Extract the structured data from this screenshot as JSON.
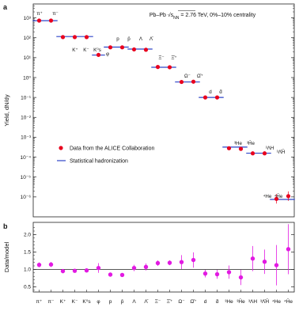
{
  "panel_a_label": "a",
  "panel_b_label": "b",
  "info": {
    "system": "Pb–Pb",
    "energy_prefix": "√s",
    "energy_sub": "NN",
    "energy_suffix": " = 2.76 TeV, 0%–10% centrality"
  },
  "legend": {
    "data_label": "Data from the ALICE Collaboration",
    "model_label": "Statistical hadronization"
  },
  "colors": {
    "data": "#e8001e",
    "model": "#2d43c8",
    "ratio": "#e21ae2",
    "error": "#e21ae2"
  },
  "chart_data": [
    {
      "type": "scatter",
      "panel": "a",
      "ylabel": "Yield, dN/dy",
      "yscale": "log",
      "ylim": [
        1e-07,
        5000
      ],
      "y_ticks": [
        "10³",
        "10²",
        "10¹",
        "10⁰",
        "10⁻¹",
        "10⁻²",
        "10⁻³",
        "10⁻⁴",
        "10⁻⁵",
        "10⁻⁶"
      ],
      "y_tick_values": [
        1000,
        100,
        10,
        1,
        0.1,
        0.01,
        0.001,
        0.0001,
        1e-05,
        1e-06
      ],
      "groups": [
        {
          "label": "π⁺  π⁻",
          "x": [
            0.8,
            1.8
          ],
          "data": [
            730,
            730
          ],
          "model": 720
        },
        {
          "label": "K⁺  K⁻  K⁰s",
          "x": [
            2.8,
            3.8,
            4.8
          ],
          "data": [
            108,
            108,
            108
          ],
          "model": 115
        },
        {
          "label": "φ",
          "x": [
            5.8
          ],
          "data": [
            13.8
          ],
          "model": 13.5
        },
        {
          "label": "p  p̄",
          "x": [
            6.8,
            7.8
          ],
          "data": [
            33,
            33
          ],
          "model": 34
        },
        {
          "label": "Λ  Λ̄",
          "x": [
            8.8,
            9.8
          ],
          "data": [
            26,
            25
          ],
          "model": 27
        },
        {
          "label": "Ξ⁻  Ξ̄⁺",
          "x": [
            10.8,
            11.8
          ],
          "data": [
            3.4,
            3.3
          ],
          "model": 3.3
        },
        {
          "label": "Ω⁻  Ω̄⁺",
          "x": [
            12.8,
            13.8
          ],
          "data": [
            0.6,
            0.62
          ],
          "model": 0.6
        },
        {
          "label": "d  d̄",
          "x": [
            14.8,
            15.8
          ],
          "data": [
            0.1,
            0.1
          ],
          "model": 0.1
        },
        {
          "label": "³He  ³H̄e",
          "x": [
            16.8,
            17.8
          ],
          "data": [
            0.00028,
            0.00026
          ],
          "model": 0.00032
        },
        {
          "label": "³ΛH  ³Λ̄H̄",
          "x": [
            18.8,
            19.8
          ],
          "data": [
            0.000155,
            0.000155
          ],
          "model": 0.000158
        },
        {
          "label": "⁴He  ⁴H̄e",
          "x": [
            20.8,
            21.8
          ],
          "data": [
            8e-07,
            1.1e-06
          ],
          "model": 7.5e-07
        }
      ],
      "annotations": [
        "π⁺",
        "π⁻",
        "K⁺",
        "K⁻",
        "K⁰s",
        "φ",
        "p",
        "p̄",
        "Λ",
        "Λ̄",
        "Ξ⁻",
        "Ξ̄⁺",
        "Ω⁻",
        "Ω̄⁺",
        "d",
        "d̄",
        "³He",
        "³H̄e",
        "³ΛH",
        "³Λ̄H̄",
        "⁴He",
        "⁴H̄e"
      ]
    },
    {
      "type": "scatter",
      "panel": "b",
      "ylabel": "Data/model",
      "ylim": [
        0.35,
        2.35
      ],
      "y_ticks": [
        "2.0",
        "1.5",
        "1.0",
        "0.5"
      ],
      "y_tick_values": [
        2.0,
        1.5,
        1.0,
        0.5
      ],
      "categories": [
        "π⁺",
        "π⁻",
        "K⁺",
        "K⁻",
        "K⁰s",
        "φ",
        "p",
        "p̄",
        "Λ",
        "Λ̄",
        "Ξ⁻",
        "Ξ̄⁺",
        "Ω⁻",
        "Ω̄⁺",
        "d",
        "d̄",
        "³He",
        "³H̄e",
        "³ΛH",
        "³Λ̄H̄",
        "⁴He",
        "⁴H̄e"
      ],
      "values": [
        1.13,
        1.14,
        0.95,
        0.96,
        0.97,
        1.04,
        0.85,
        0.84,
        1.04,
        1.07,
        1.18,
        1.19,
        1.21,
        1.27,
        0.88,
        0.86,
        0.92,
        0.77,
        1.31,
        1.22,
        1.12,
        1.58
      ],
      "errors": [
        0.07,
        0.07,
        0.06,
        0.05,
        0.06,
        0.14,
        0.05,
        0.05,
        0.09,
        0.1,
        0.08,
        0.07,
        0.2,
        0.22,
        0.11,
        0.13,
        0.19,
        0.22,
        0.36,
        0.35,
        0.58,
        0.72
      ]
    }
  ]
}
